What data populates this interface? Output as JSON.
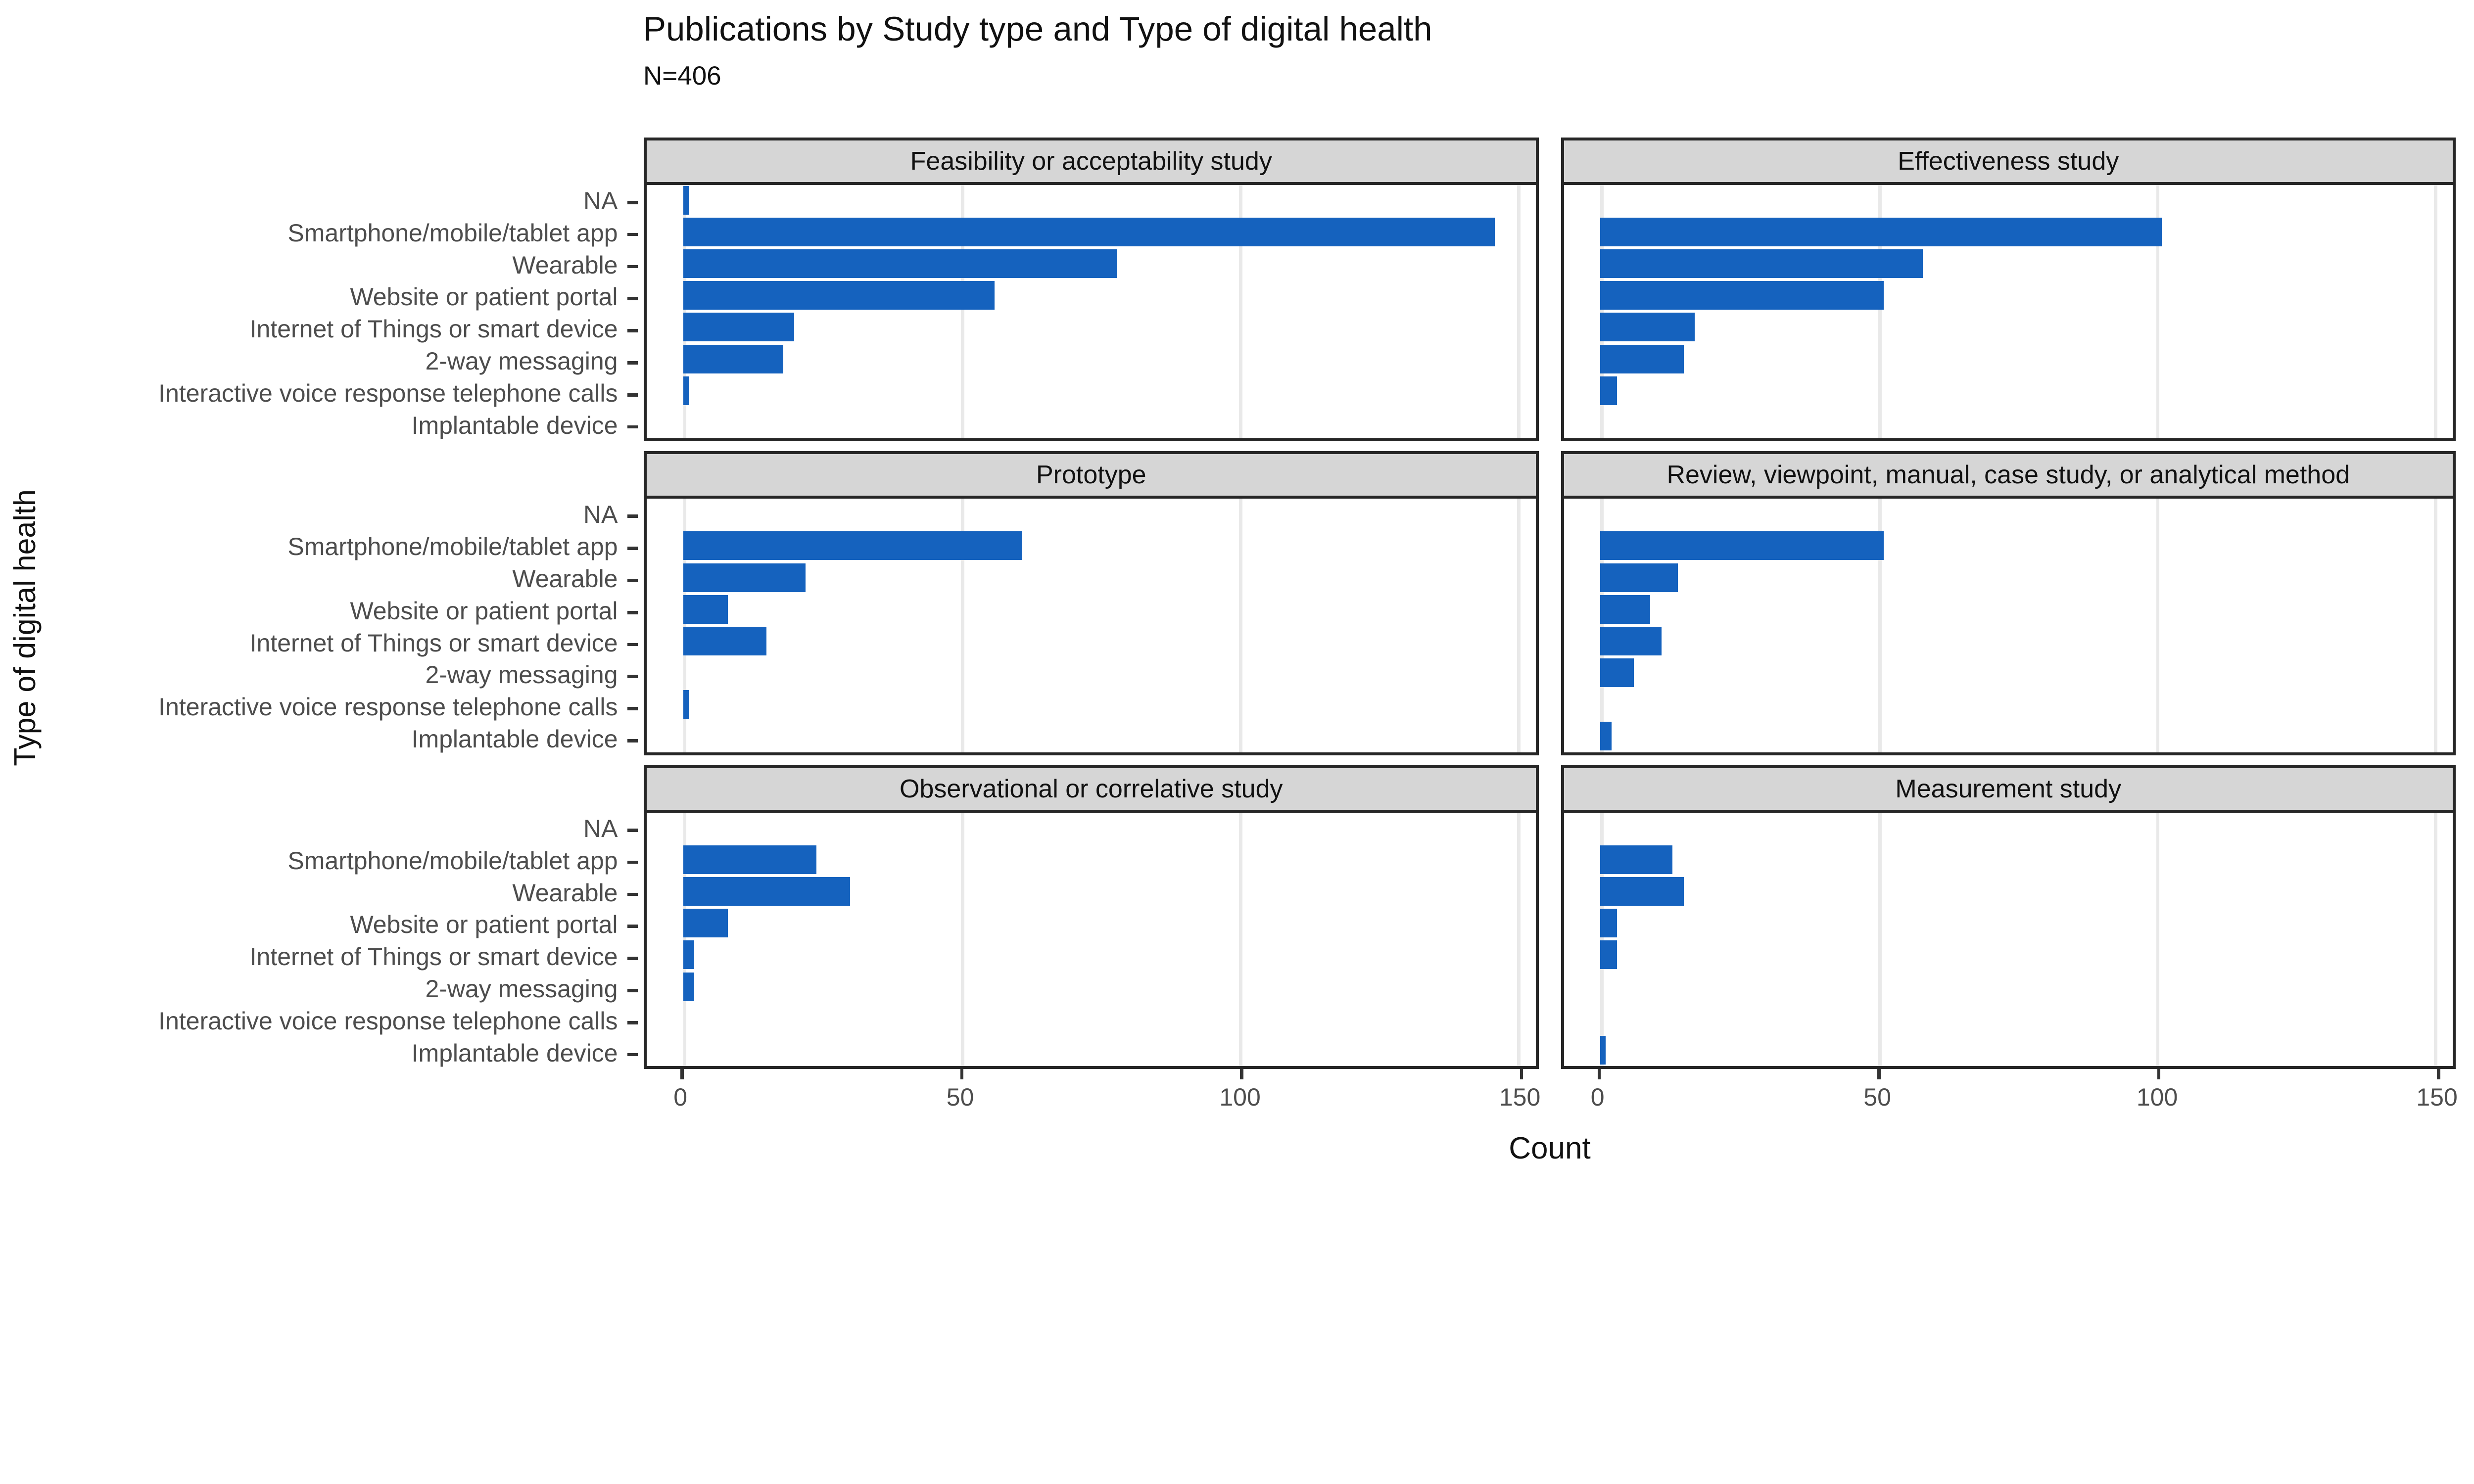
{
  "chart_data": {
    "type": "bar",
    "orientation": "horizontal",
    "title": "Publications by Study type and Type of digital health",
    "subtitle": "N=406",
    "xlabel": "Count",
    "ylabel": "Type of digital health",
    "categories": [
      "NA",
      "Smartphone/mobile/tablet app",
      "Wearable",
      "Website or patient portal",
      "Internet of Things or smart device",
      "2-way messaging",
      "Interactive voice response telephone calls",
      "Implantable device"
    ],
    "facets": [
      {
        "label": "Feasibility or acceptability study",
        "values": [
          1,
          146,
          78,
          56,
          20,
          18,
          1,
          0
        ]
      },
      {
        "label": "Effectiveness study",
        "values": [
          0,
          101,
          58,
          51,
          17,
          15,
          3,
          0
        ]
      },
      {
        "label": "Prototype",
        "values": [
          0,
          61,
          22,
          8,
          15,
          0,
          1,
          0
        ]
      },
      {
        "label": "Review, viewpoint, manual, case study, or analytical method",
        "values": [
          0,
          51,
          14,
          9,
          11,
          6,
          0,
          2
        ]
      },
      {
        "label": "Observational or correlative study",
        "values": [
          0,
          24,
          30,
          8,
          2,
          2,
          0,
          0
        ]
      },
      {
        "label": "Measurement study",
        "values": [
          0,
          13,
          15,
          3,
          3,
          0,
          0,
          1
        ]
      }
    ],
    "x_ticks": [
      0,
      50,
      100,
      150
    ],
    "xlim": [
      -6.5,
      153.5
    ],
    "grid": "vertical-major-only",
    "legend": null,
    "bar_color": "#1562be",
    "strip_fill": "#d6d6d6",
    "panel_border_color": "#262626",
    "gridline_color": "#e9e9e9",
    "axis_text_color": "#4d4d4d"
  }
}
